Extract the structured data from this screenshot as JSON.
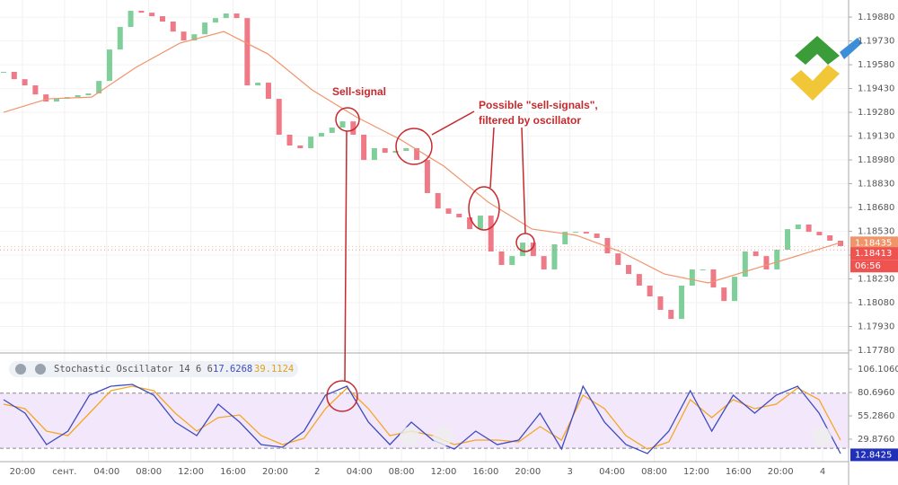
{
  "chart_data": [
    {
      "type": "candlestick",
      "closes": [
        1.19535,
        1.19489,
        1.1945,
        1.19393,
        1.19348,
        1.19365,
        1.19376,
        1.19388,
        1.19399,
        1.19478,
        1.19676,
        1.19818,
        1.1992,
        1.19908,
        1.19886,
        1.19852,
        1.19789,
        1.19733,
        1.19772,
        1.19846,
        1.19874,
        1.19903,
        1.19874,
        1.1945,
        1.19467,
        1.19365,
        1.19139,
        1.19071,
        1.19054,
        1.19127,
        1.1915,
        1.19184,
        1.19223,
        1.19139,
        1.1898,
        1.19054,
        1.19025,
        1.19037,
        1.19054,
        1.1898,
        1.18771,
        1.18674,
        1.18641,
        1.18618,
        1.18544,
        1.18629,
        1.18403,
        1.18318,
        1.18374,
        1.18459,
        1.18374,
        1.1829,
        1.18448,
        1.18527,
        1.18527,
        1.18516,
        1.18488,
        1.18391,
        1.18318,
        1.18261,
        1.18188,
        1.1812,
        1.18035,
        1.17978,
        1.18188,
        1.1829,
        1.1829,
        1.18176,
        1.18091,
        1.18244,
        1.18403,
        1.18374,
        1.1829,
        1.18414,
        1.18544,
        1.18573,
        1.18527,
        1.18505,
        1.18471,
        1.18437
      ],
      "up_color": "#7fcf9a",
      "down_color": "#ee7a88",
      "moving_average": {
        "color": "#f0946a",
        "values": [
          1.1928,
          1.19365,
          1.19376,
          1.19563,
          1.19716,
          1.19789,
          1.19648,
          1.19422,
          1.19252,
          1.1911,
          1.1894,
          1.18714,
          1.18544,
          1.18505,
          1.18403,
          1.18261,
          1.18205,
          1.1829,
          1.18374,
          1.18459
        ]
      },
      "ylim": [
        1.17769,
        1.19988
      ],
      "yticks": [
        {
          "value": 1.1988,
          "label": "1.19880"
        },
        {
          "value": 1.1973,
          "label": "1.19730"
        },
        {
          "value": 1.1958,
          "label": "1.19580"
        },
        {
          "value": 1.1943,
          "label": "1.19430"
        },
        {
          "value": 1.1928,
          "label": "1.19280"
        },
        {
          "value": 1.1913,
          "label": "1.19130"
        },
        {
          "value": 1.1898,
          "label": "1.18980"
        },
        {
          "value": 1.1883,
          "label": "1.18830"
        },
        {
          "value": 1.1868,
          "label": "1.18680"
        },
        {
          "value": 1.1853,
          "label": "1.18530"
        },
        {
          "value": 1.1838,
          "label": "1.18380"
        },
        {
          "value": 1.1823,
          "label": "1.18230"
        },
        {
          "value": 1.1808,
          "label": "1.18080"
        },
        {
          "value": 1.1793,
          "label": "1.17930"
        },
        {
          "value": 1.1778,
          "label": "1.17780"
        }
      ],
      "price_tags": [
        {
          "value": 1.18435,
          "label": "1.18435",
          "color": "#f0946a"
        },
        {
          "value": 1.18413,
          "label": "1.18413",
          "color": "#ef5350"
        }
      ],
      "countdown": "06:56",
      "annotations": [
        "Sell-signal",
        "Possible \"sell-signals\",",
        "filtered by oscillator"
      ]
    },
    {
      "type": "line",
      "title": "Stochastic Oscillator 14 6 6",
      "legend_values": [
        17.6268,
        39.1124
      ],
      "series": [
        {
          "name": "%K",
          "color": "#3f4bbf",
          "values": [
            72.88,
            58.22,
            24.01,
            38.67,
            77.76,
            87.54,
            89.49,
            77.76,
            48.45,
            33.79,
            67.99,
            48.45,
            24.01,
            21.08,
            38.67,
            77.76,
            87.54,
            48.45,
            24.01,
            48.45,
            28.9,
            19.12,
            38.67,
            24.01,
            28.9,
            58.22,
            19.12,
            87.54,
            48.45,
            24.01,
            14.24,
            38.67,
            82.65,
            38.67,
            77.76,
            58.22,
            77.76,
            87.54,
            58.22,
            14.24
          ]
        },
        {
          "name": "%D",
          "color": "#f5a623",
          "values": [
            67.99,
            63.1,
            38.67,
            33.79,
            58.22,
            82.65,
            87.54,
            82.65,
            58.22,
            38.67,
            53.33,
            56.26,
            33.79,
            24.01,
            30.85,
            63.1,
            85.58,
            63.1,
            33.79,
            38.67,
            33.79,
            24.01,
            28.9,
            28.9,
            26.94,
            43.56,
            28.9,
            77.76,
            63.1,
            33.79,
            19.12,
            26.94,
            72.88,
            53.33,
            72.88,
            63.1,
            67.99,
            85.58,
            72.88,
            28.9
          ]
        }
      ],
      "levels": [
        80,
        20
      ],
      "ylim": [
        7.4,
        116.86
      ],
      "yticks": [
        {
          "value": 106.106,
          "label": "106.1060"
        },
        {
          "value": 80.696,
          "label": "80.6960"
        },
        {
          "value": 55.286,
          "label": "55.2860"
        },
        {
          "value": 29.876,
          "label": "29.8760"
        }
      ],
      "last_tag": {
        "value": 12.8425,
        "label": "12.8425",
        "color": "#2130b8"
      },
      "time_labels": [
        "20:00",
        "сент.",
        "04:00",
        "08:00",
        "12:00",
        "16:00",
        "20:00",
        "2",
        "04:00",
        "08:00",
        "12:00",
        "16:00",
        "20:00",
        "3",
        "04:00",
        "08:00",
        "12:00",
        "16:00",
        "20:00",
        "4"
      ]
    }
  ]
}
